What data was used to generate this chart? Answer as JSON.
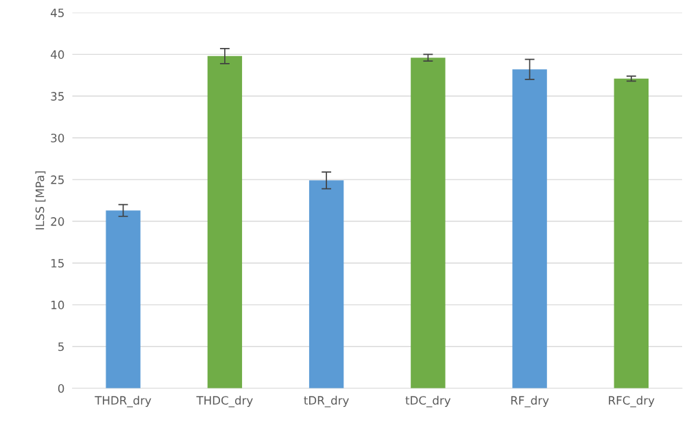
{
  "chart_data": {
    "type": "bar",
    "ylabel": "ILSS [MPa]",
    "categories": [
      "THDR_dry",
      "THDC_dry",
      "tDR_dry",
      "tDC_dry",
      "RF_dry",
      "RFC_dry"
    ],
    "values": [
      21.3,
      39.8,
      24.9,
      39.6,
      38.2,
      37.1
    ],
    "errors": [
      0.7,
      0.9,
      1.0,
      0.4,
      1.2,
      0.3
    ],
    "colors": [
      "#5b9bd5",
      "#70ad47",
      "#5b9bd5",
      "#70ad47",
      "#5b9bd5",
      "#70ad47"
    ],
    "ylim": [
      0,
      45
    ],
    "yticks": [
      0,
      5,
      10,
      15,
      20,
      25,
      30,
      35,
      40,
      45
    ],
    "grid": "y",
    "legend": false
  }
}
